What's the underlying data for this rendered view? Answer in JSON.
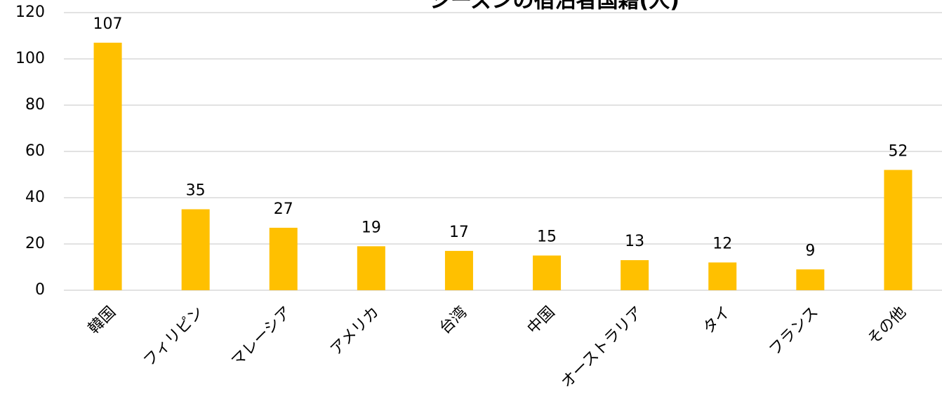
{
  "chart_data": {
    "type": "bar",
    "title": "シーズンの宿泊者国籍(人)",
    "categories": [
      "韓国",
      "フィリピン",
      "マレーシア",
      "アメリカ",
      "台湾",
      "中国",
      "オーストラリア",
      "タイ",
      "フランス",
      "その他"
    ],
    "values": [
      107,
      35,
      27,
      19,
      17,
      15,
      13,
      12,
      9,
      52
    ],
    "color": "#ffc000",
    "ylim": [
      0,
      120
    ],
    "yticks": [
      0,
      20,
      40,
      60,
      80,
      100,
      120
    ],
    "grid": true
  }
}
